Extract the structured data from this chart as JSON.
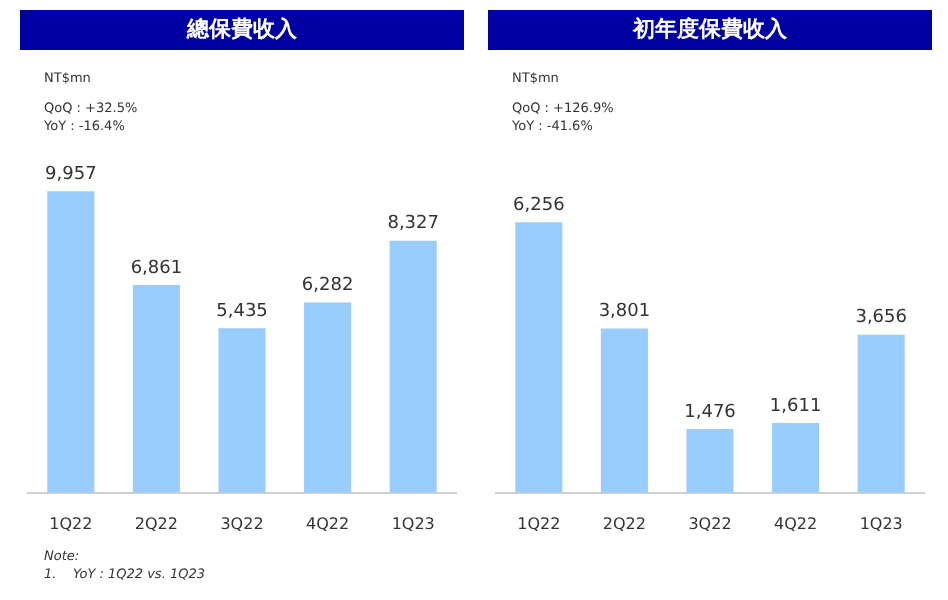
{
  "chart_data": [
    {
      "type": "bar",
      "title": "總保費收入",
      "categories": [
        "1Q22",
        "2Q22",
        "3Q22",
        "4Q22",
        "1Q23"
      ],
      "values": [
        9957,
        6861,
        5435,
        6282,
        8327
      ],
      "value_labels": [
        "9,957",
        "6,861",
        "5,435",
        "6,282",
        "8,327"
      ],
      "color": "#99ccff",
      "annotations": [
        "NT$mn",
        "QoQ : +32.5%",
        "YoY : -16.4%"
      ]
    },
    {
      "type": "bar",
      "title": "初年度保費收入",
      "categories": [
        "1Q22",
        "2Q22",
        "3Q22",
        "4Q22",
        "1Q23"
      ],
      "values": [
        6256,
        3801,
        1476,
        1611,
        3656
      ],
      "value_labels": [
        "6,256",
        "3,801",
        "1,476",
        "1,611",
        "3,656"
      ],
      "color": "#99ccff",
      "annotations": [
        "NT$mn",
        "QoQ : +126.9%",
        "YoY : -41.6%"
      ]
    },
    {
      "type": "other",
      "annotations": [
        "Note:",
        "1.    YoY : 1Q22 vs. 1Q23"
      ]
    }
  ]
}
